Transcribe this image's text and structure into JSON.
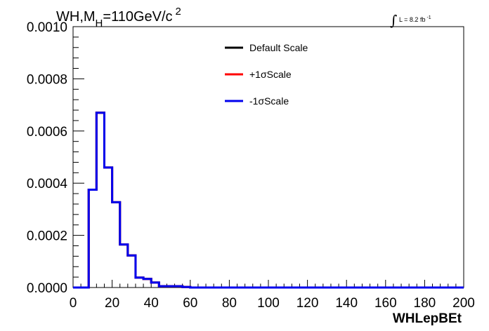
{
  "chart_data": {
    "type": "histogram",
    "title": "WH,M",
    "title_sub": "H",
    "title_rest": "=110GeV/c",
    "title_sup": "2",
    "lumi_label": "L = 8.2 fb",
    "lumi_sup": "-1",
    "xlabel": "WHLepBEt",
    "xlim": [
      0,
      200
    ],
    "ylim": [
      0,
      0.001
    ],
    "x_ticks": [
      0,
      20,
      40,
      60,
      80,
      100,
      120,
      140,
      160,
      180,
      200
    ],
    "x_tick_labels": [
      "0",
      "20",
      "40",
      "60",
      "80",
      "100",
      "120",
      "140",
      "160",
      "180",
      "200"
    ],
    "y_ticks": [
      0,
      0.0002,
      0.0004,
      0.0006,
      0.0008,
      0.001
    ],
    "y_tick_labels": [
      "0.0000",
      "0.0002",
      "0.0004",
      "0.0006",
      "0.0008",
      "0.0010"
    ],
    "bin_edges": [
      0,
      4,
      8,
      12,
      16,
      20,
      24,
      28,
      32,
      36,
      40,
      44,
      48,
      52,
      56,
      60,
      200
    ],
    "series": [
      {
        "name": "Default Scale",
        "color": "#000000",
        "values": [
          0,
          0,
          0.000375,
          0.00067,
          0.00046,
          0.000327,
          0.000165,
          0.000123,
          3.8e-05,
          3.3e-05,
          1.9e-05,
          5e-06,
          5e-06,
          5e-06,
          2e-06,
          0
        ]
      },
      {
        "name": "+1σScale",
        "color": "#ff0000",
        "values": [
          0,
          0,
          0.000375,
          0.00067,
          0.00046,
          0.000327,
          0.000165,
          0.000123,
          3.8e-05,
          3.3e-05,
          1.9e-05,
          5e-06,
          5e-06,
          5e-06,
          2e-06,
          0
        ]
      },
      {
        "name": "-1σScale",
        "color": "#0000ee",
        "values": [
          0,
          0,
          0.000375,
          0.00067,
          0.00046,
          0.000327,
          0.000165,
          0.000123,
          3.8e-05,
          3.3e-05,
          1.9e-05,
          5e-06,
          5e-06,
          5e-06,
          2e-06,
          0
        ]
      }
    ],
    "legend_position": "top-center"
  }
}
